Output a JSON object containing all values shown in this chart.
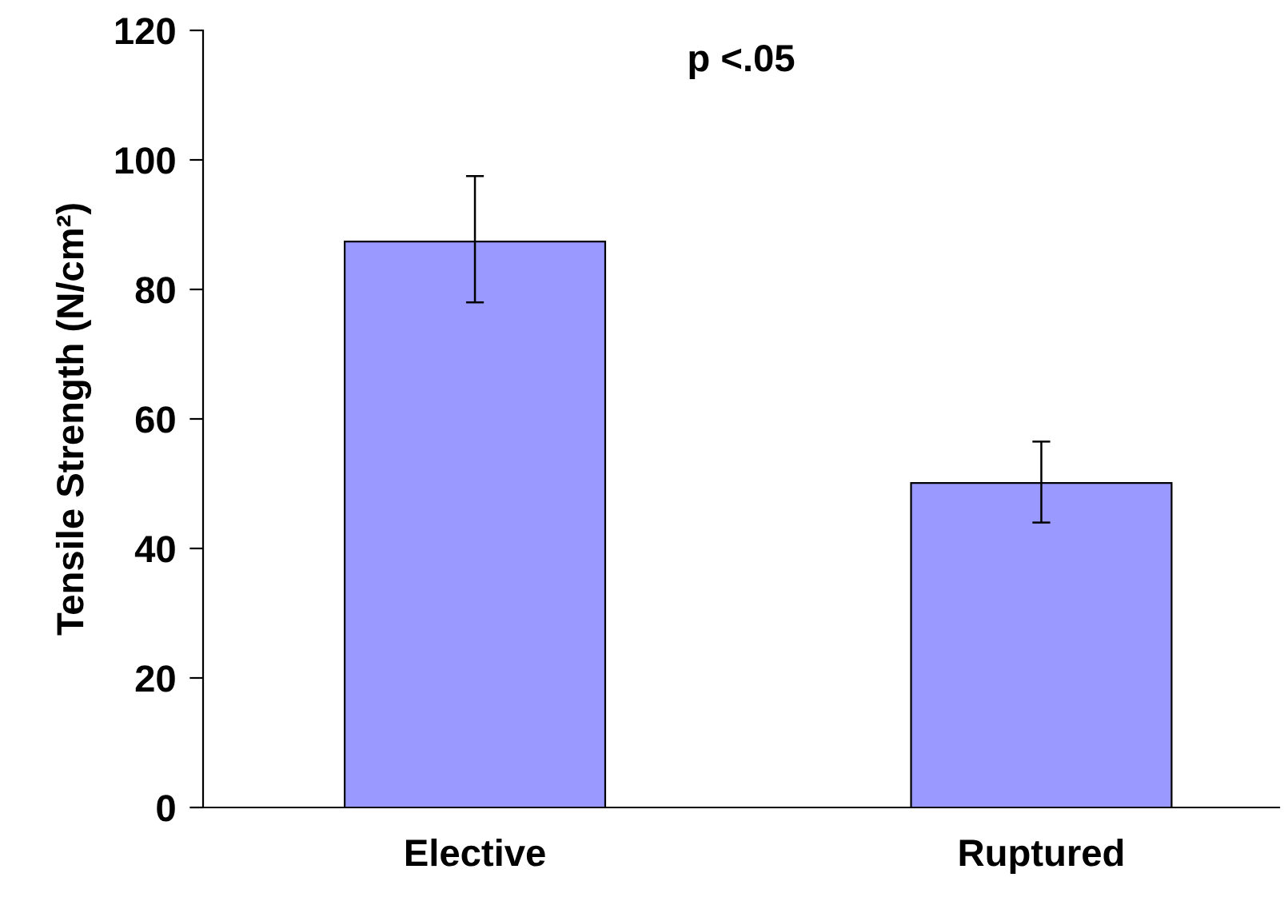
{
  "chart_data": {
    "type": "bar",
    "ylabel": "Tensile Strength (N/cm²)",
    "categories": [
      "Elective",
      "Ruptured"
    ],
    "values": [
      87.4,
      50.1
    ],
    "errors": [
      [
        78,
        97.5
      ],
      [
        44,
        56.5
      ]
    ],
    "color": "#9999ff",
    "ylim": [
      0,
      120
    ],
    "yticks": [
      0,
      20,
      40,
      60,
      80,
      100,
      120
    ],
    "annotations": [
      "p <.05"
    ],
    "grid": false,
    "legend": false
  }
}
